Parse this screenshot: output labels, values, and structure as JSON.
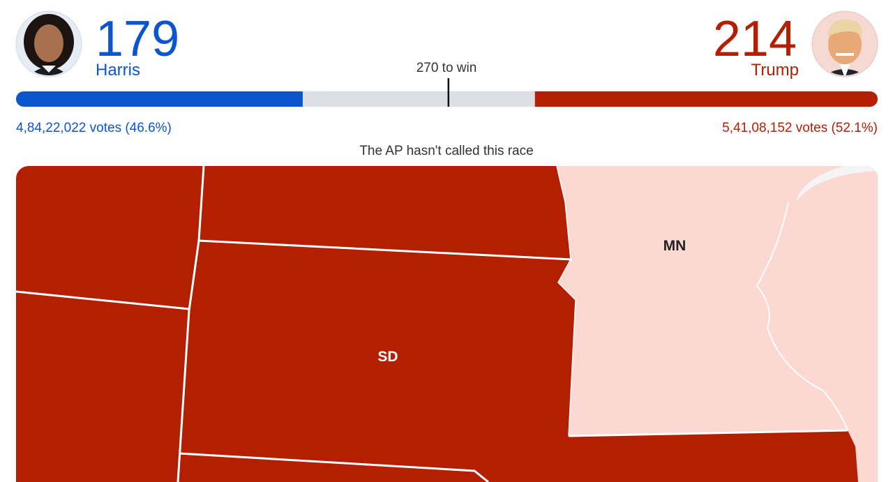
{
  "candidates": [
    {
      "name": "Harris",
      "electoral_votes": 179,
      "popular_vote": "4,84,22,022 votes (46.6%)",
      "color": "#0b55cf"
    },
    {
      "name": "Trump",
      "electoral_votes": 214,
      "popular_vote": "5,41,08,152 votes (52.1%)",
      "color": "#b41f02"
    }
  ],
  "progress": {
    "xlim": [
      0,
      538
    ],
    "threshold": 270,
    "threshold_label": "270 to win",
    "track_color": "#dcdfe3"
  },
  "status": "The AP hasn't called this race",
  "map": {
    "labels": [
      "SD",
      "MN"
    ]
  }
}
